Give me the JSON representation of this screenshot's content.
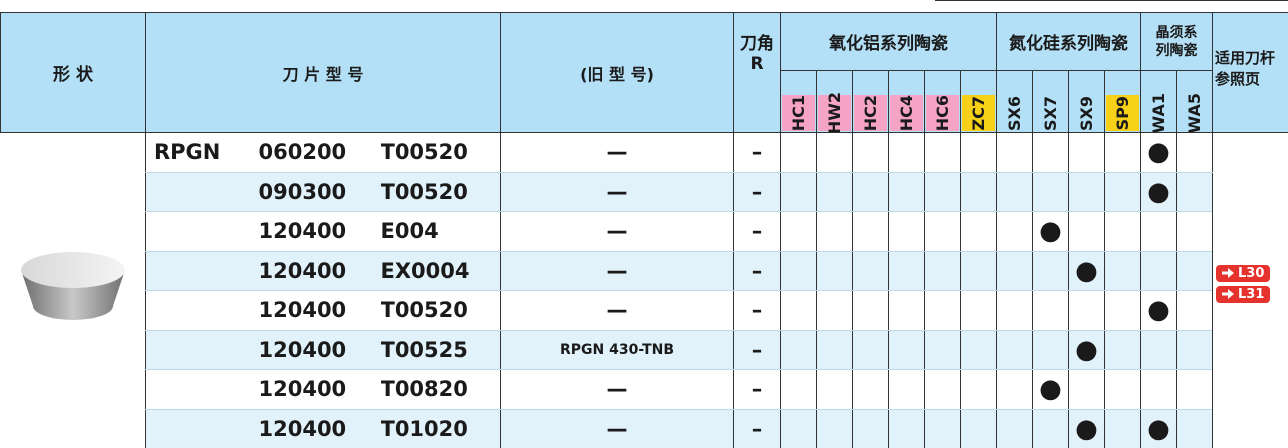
{
  "header": {
    "shape": "形 状",
    "model": "刀 片 型 号",
    "old_model": "(旧 型 号)",
    "corner": [
      "刀角",
      "R"
    ],
    "groups": [
      {
        "name": [
          "氧化铝系列陶瓷"
        ],
        "grades": [
          {
            "name": "HC1",
            "color": "#f5a4c6"
          },
          {
            "name": "HW2",
            "color": "#f5a4c6"
          },
          {
            "name": "HC2",
            "color": "#f5a4c6"
          },
          {
            "name": "HC4",
            "color": "#f5a4c6"
          },
          {
            "name": "HC6",
            "color": "#f5a4c6"
          },
          {
            "name": "ZC7",
            "color": "#f7d117"
          }
        ]
      },
      {
        "name": [
          "氮化硅系列陶瓷"
        ],
        "grades": [
          {
            "name": "SX6",
            "color": "#b3e0f6"
          },
          {
            "name": "SX7",
            "color": "#b3e0f6"
          },
          {
            "name": "SX9",
            "color": "#b3e0f6"
          },
          {
            "name": "SP9",
            "color": "#f7d117"
          }
        ]
      },
      {
        "name": [
          "晶须系",
          "列陶瓷"
        ],
        "grades": [
          {
            "name": "WA1",
            "color": "#b3e0f6"
          },
          {
            "name": "WA5",
            "color": "#b3e0f6"
          }
        ]
      }
    ],
    "reference": [
      "适用刀杆",
      "参照页"
    ]
  },
  "table": {
    "rows": [
      {
        "prefix": "RPGN",
        "size": "060200",
        "code": "T00520",
        "old": "—",
        "r": "–",
        "marks": [
          null,
          null,
          null,
          null,
          null,
          null,
          null,
          null,
          null,
          null,
          "●",
          null
        ]
      },
      {
        "size": "090300",
        "code": "T00520",
        "old": "—",
        "r": "–",
        "marks": [
          null,
          null,
          null,
          null,
          null,
          null,
          null,
          null,
          null,
          null,
          "●",
          null
        ]
      },
      {
        "size": "120400",
        "code": "E004",
        "old": "—",
        "r": "–",
        "marks": [
          null,
          null,
          null,
          null,
          null,
          null,
          null,
          "●",
          null,
          null,
          null,
          null
        ]
      },
      {
        "size": "120400",
        "code": "EX0004",
        "old": "—",
        "r": "–",
        "marks": [
          null,
          null,
          null,
          null,
          null,
          null,
          null,
          null,
          "●",
          null,
          null,
          null
        ]
      },
      {
        "size": "120400",
        "code": "T00520",
        "old": "—",
        "r": "–",
        "marks": [
          null,
          null,
          null,
          null,
          null,
          null,
          null,
          null,
          null,
          null,
          "●",
          null
        ]
      },
      {
        "size": "120400",
        "code": "T00525",
        "old": "RPGN 430-TNB",
        "r": "–",
        "marks": [
          null,
          null,
          null,
          null,
          null,
          null,
          null,
          null,
          "●",
          null,
          null,
          null
        ]
      },
      {
        "size": "120400",
        "code": "T00820",
        "old": "—",
        "r": "–",
        "marks": [
          null,
          null,
          null,
          null,
          null,
          null,
          null,
          "●",
          null,
          null,
          null,
          null
        ]
      },
      {
        "size": "120400",
        "code": "T01020",
        "old": "—",
        "r": "–",
        "marks": [
          null,
          null,
          null,
          null,
          null,
          null,
          null,
          null,
          "●",
          null,
          "●",
          null
        ]
      }
    ]
  },
  "references": [
    "L30",
    "L31"
  ]
}
